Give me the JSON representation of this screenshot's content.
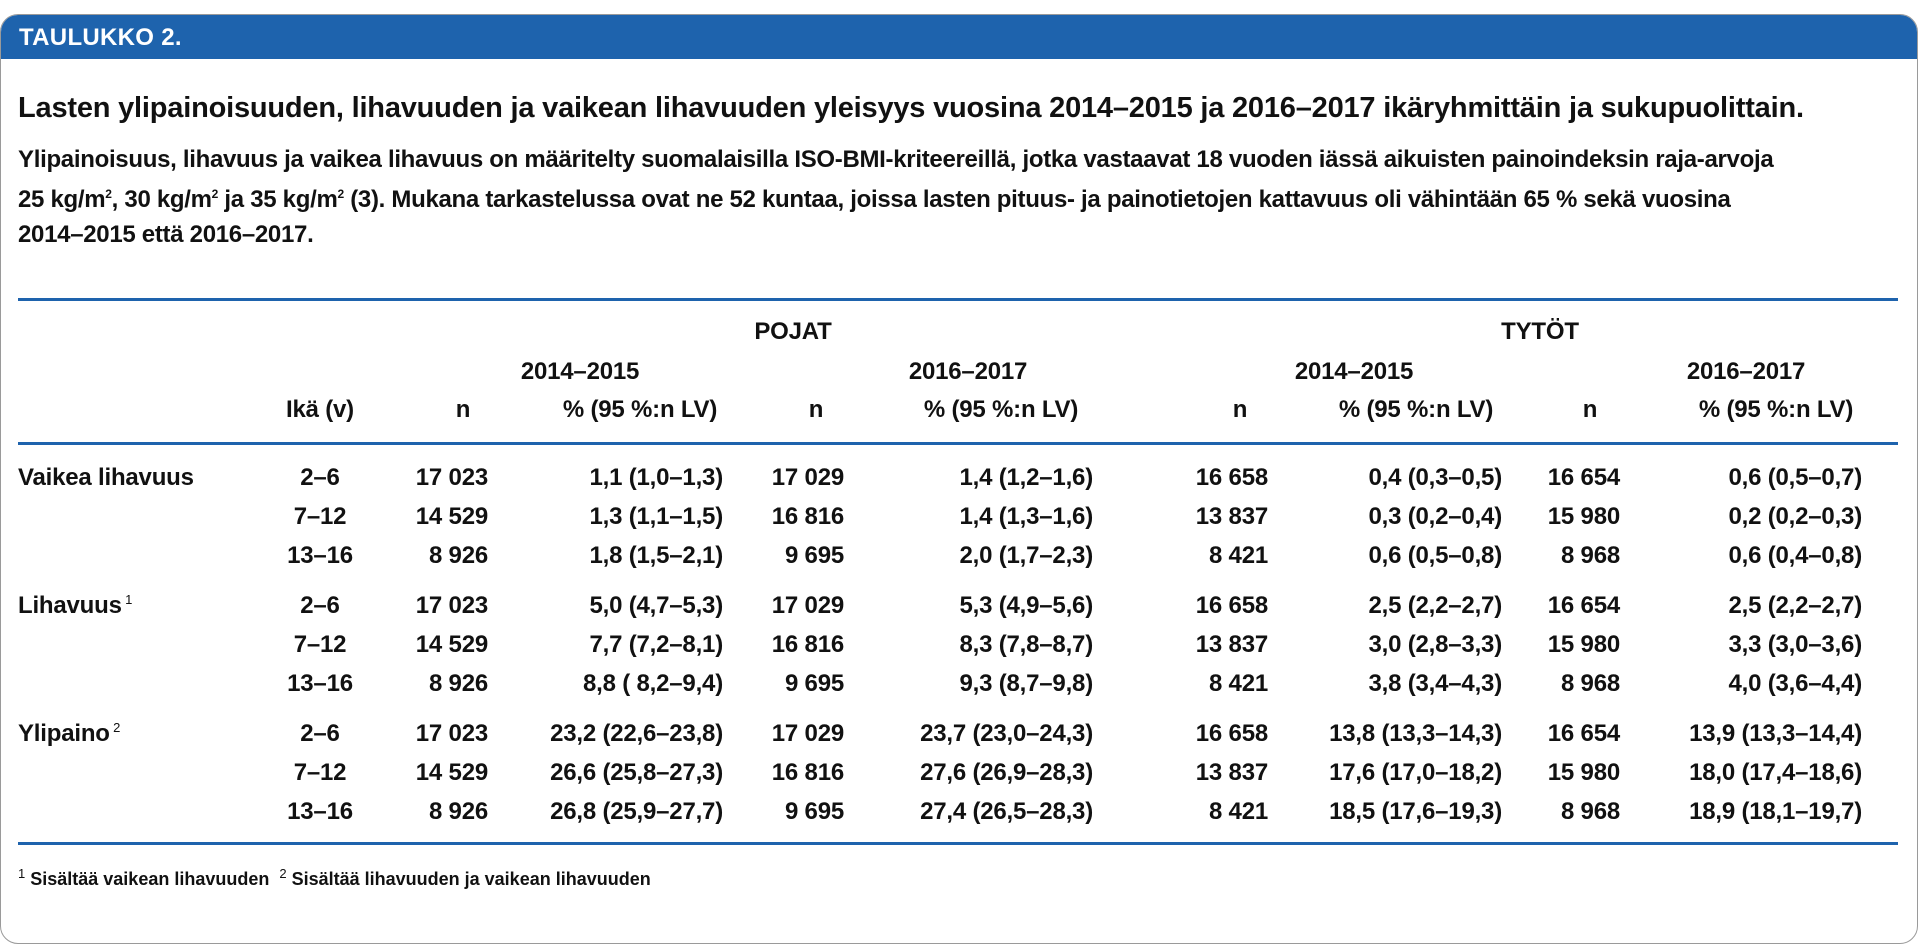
{
  "banner": "TAULUKKO 2.",
  "title": "Lasten ylipainoisuuden, lihavuuden ja vaikean lihavuuden yleisyys vuosina 2014–2015 ja 2016–2017 ikäryhmittäin ja sukupuolittain.",
  "description": {
    "line1": "Ylipainoisuus, lihavuus ja vaikea lihavuus on määritelty suomalaisilla ISO-BMI-kriteereillä, jotka vastaavat 18 vuoden iässä aikuisten painoindeksin raja-arvoja",
    "l2a": "25 kg/m",
    "l2b": ", 30 kg/m",
    "l2c": " ja 35 kg/m",
    "l2d": " (3). Mukana tarkastelussa ovat ne 52 kuntaa, joissa lasten pituus- ja painotietojen kattavuus oli vähintään 65 % sekä vuosina",
    "sup2": "2",
    "line3": "2014–2015 että 2016–2017."
  },
  "table": {
    "group_boys": "POJAT",
    "group_girls": "TYTÖT",
    "period1": "2014–2015",
    "period2": "2016–2017",
    "col_age": "Ikä (v)",
    "col_n": "n",
    "col_pct": "% (95 %:n LV)",
    "groups": [
      {
        "label": "Vaikea lihavuus",
        "sup": "",
        "rows": [
          {
            "age": "2–6",
            "bn1": "17 023",
            "bp1": "1,1 (1,0–1,3)",
            "bn2": "17 029",
            "bp2": "1,4 (1,2–1,6)",
            "gn1": "16 658",
            "gp1": "0,4 (0,3–0,5)",
            "gn2": "16 654",
            "gp2": "0,6 (0,5–0,7)"
          },
          {
            "age": "7–12",
            "bn1": "14 529",
            "bp1": "1,3 (1,1–1,5)",
            "bn2": "16 816",
            "bp2": "1,4 (1,3–1,6)",
            "gn1": "13 837",
            "gp1": "0,3 (0,2–0,4)",
            "gn2": "15 980",
            "gp2": "0,2 (0,2–0,3)"
          },
          {
            "age": "13–16",
            "bn1": "8 926",
            "bp1": "1,8 (1,5–2,1)",
            "bn2": "9 695",
            "bp2": "2,0 (1,7–2,3)",
            "gn1": "8 421",
            "gp1": "0,6 (0,5–0,8)",
            "gn2": "8 968",
            "gp2": "0,6 (0,4–0,8)"
          }
        ]
      },
      {
        "label": "Lihavuus",
        "sup": "1",
        "rows": [
          {
            "age": "2–6",
            "bn1": "17 023",
            "bp1": "5,0 (4,7–5,3)",
            "bn2": "17 029",
            "bp2": "5,3 (4,9–5,6)",
            "gn1": "16 658",
            "gp1": "2,5 (2,2–2,7)",
            "gn2": "16 654",
            "gp2": "2,5 (2,2–2,7)"
          },
          {
            "age": "7–12",
            "bn1": "14 529",
            "bp1": "7,7 (7,2–8,1)",
            "bn2": "16 816",
            "bp2": "8,3 (7,8–8,7)",
            "gn1": "13 837",
            "gp1": "3,0 (2,8–3,3)",
            "gn2": "15 980",
            "gp2": "3,3 (3,0–3,6)"
          },
          {
            "age": "13–16",
            "bn1": "8 926",
            "bp1": "8,8 ( 8,2–9,4)",
            "bn2": "9 695",
            "bp2": "9,3 (8,7–9,8)",
            "gn1": "8 421",
            "gp1": "3,8 (3,4–4,3)",
            "gn2": "8 968",
            "gp2": "4,0 (3,6–4,4)"
          }
        ]
      },
      {
        "label": "Ylipaino",
        "sup": "2",
        "rows": [
          {
            "age": "2–6",
            "bn1": "17 023",
            "bp1": "23,2 (22,6–23,8)",
            "bn2": "17 029",
            "bp2": "23,7 (23,0–24,3)",
            "gn1": "16 658",
            "gp1": "13,8 (13,3–14,3)",
            "gn2": "16 654",
            "gp2": "13,9 (13,3–14,4)"
          },
          {
            "age": "7–12",
            "bn1": "14 529",
            "bp1": "26,6 (25,8–27,3)",
            "bn2": "16 816",
            "bp2": "27,6 (26,9–28,3)",
            "gn1": "13 837",
            "gp1": "17,6 (17,0–18,2)",
            "gn2": "15 980",
            "gp2": "18,0 (17,4–18,6)"
          },
          {
            "age": "13–16",
            "bn1": "8 926",
            "bp1": "26,8 (25,9–27,7)",
            "bn2": "9 695",
            "bp2": "27,4 (26,5–28,3)",
            "gn1": "8 421",
            "gp1": "18,5 (17,6–19,3)",
            "gn2": "8 968",
            "gp2": "18,9 (18,1–19,7)"
          }
        ]
      }
    ]
  },
  "footnotes": {
    "sup1": "1",
    "note1": " Sisältää vaikean lihavuuden",
    "sup2": "2",
    "note2": " Sisältää lihavuuden ja vaikean lihavuuden"
  },
  "colors": {
    "accent": "#1e63ad"
  }
}
